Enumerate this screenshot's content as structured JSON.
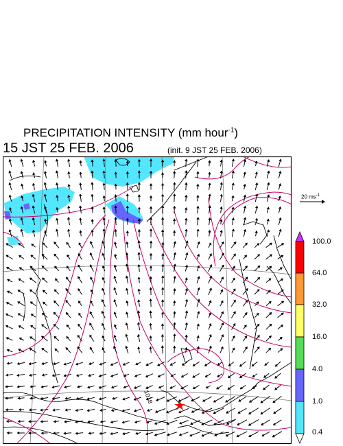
{
  "header": {
    "title": "PRECIPITATION INTENSITY (mm hour",
    "title_unit_exp": "-1",
    "title_close": ")",
    "valid_time": "15 JST 25 FEB. 2006",
    "init_time": "(init. 9 JST 25 FEB. 2006)"
  },
  "map": {
    "contour_label": "1018",
    "marker_color": "#ff0000",
    "contour_color": "#cc0066",
    "precip_light_color": "#55e6ff",
    "precip_mid_color": "#6666ff"
  },
  "wind_scale": {
    "label": "20 ms",
    "label_exp": "-1"
  },
  "colorbar": {
    "levels": [
      "100.0",
      "64.0",
      "32.0",
      "16.0",
      "4.0",
      "1.0",
      "0.4"
    ],
    "colors": [
      "#cc33ff",
      "#ff0000",
      "#ff9933",
      "#ffff66",
      "#55dd55",
      "#6666ff",
      "#55e6ff",
      "#ffffff"
    ]
  }
}
